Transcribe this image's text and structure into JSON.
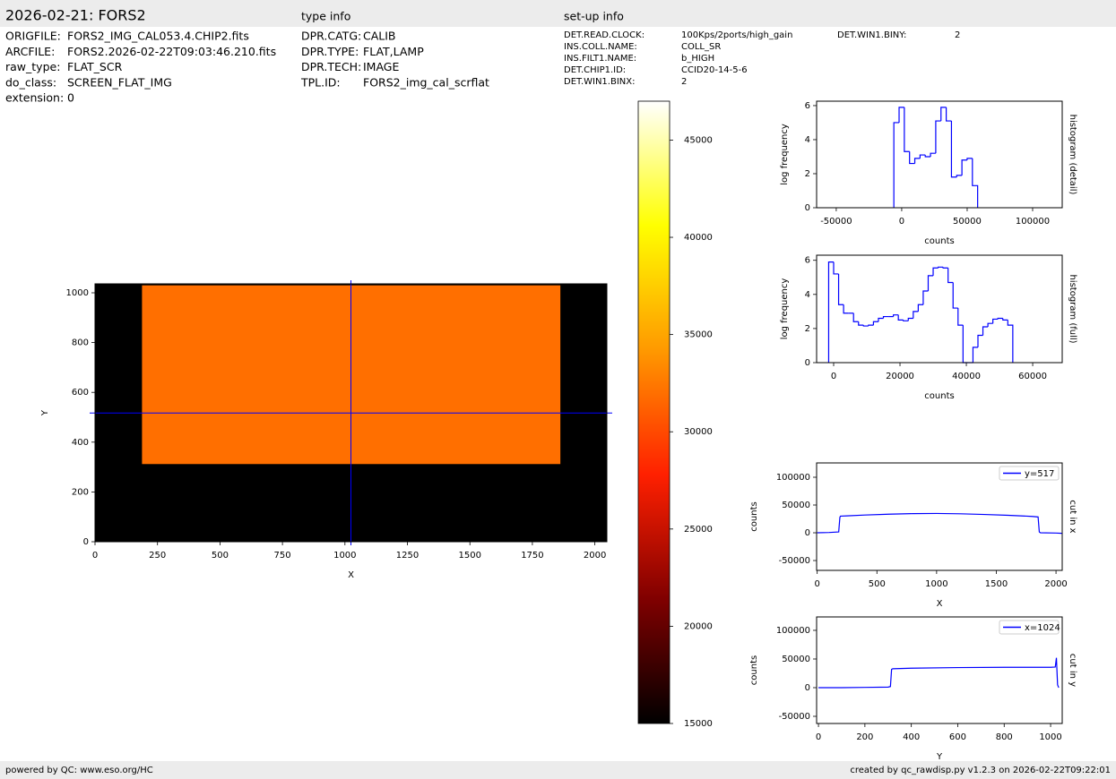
{
  "header": {
    "title": "2026-02-21: FORS2",
    "type_info_title": "type info",
    "setup_info_title": "set-up info",
    "file_info": [
      [
        "ORIGFILE:",
        "FORS2_IMG_CAL053.4.CHIP2.fits"
      ],
      [
        "ARCFILE:",
        "FORS2.2026-02-22T09:03:46.210.fits"
      ],
      [
        "raw_type:",
        "FLAT_SCR"
      ],
      [
        "do_class:",
        "SCREEN_FLAT_IMG"
      ],
      [
        "extension:",
        "0"
      ]
    ],
    "type_info": [
      [
        "DPR.CATG:",
        "CALIB"
      ],
      [
        "DPR.TYPE:",
        "FLAT,LAMP"
      ],
      [
        "DPR.TECH:",
        "IMAGE"
      ],
      [
        "TPL.ID:",
        "FORS2_img_cal_scrflat"
      ]
    ],
    "setup_info": [
      [
        "DET.READ.CLOCK:",
        "100Kps/2ports/high_gain"
      ],
      [
        "INS.COLL.NAME:",
        "COLL_SR"
      ],
      [
        "INS.FILT1.NAME:",
        "b_HIGH"
      ],
      [
        "DET.CHIP1.ID:",
        "CCID20-14-5-6"
      ],
      [
        "DET.WIN1.BINX:",
        "2"
      ],
      [
        "DET.WIN1.BINY:",
        "2"
      ]
    ]
  },
  "chart_data": [
    {
      "type": "image",
      "xlabel": "X",
      "ylabel": "Y",
      "xlim": [
        0,
        2048
      ],
      "ylim": [
        0,
        1036
      ],
      "xticks": [
        0,
        250,
        500,
        750,
        1000,
        1250,
        1500,
        1750,
        2000
      ],
      "yticks": [
        0,
        200,
        400,
        600,
        800,
        1000
      ],
      "regions": [
        {
          "x": [
            0,
            2048
          ],
          "y": [
            0,
            1036
          ],
          "value": 15000
        },
        {
          "x": [
            188,
            1862
          ],
          "y": [
            312,
            1030
          ],
          "value": 32000
        }
      ],
      "cursor": {
        "x": 1024,
        "y": 517
      },
      "cursor_color": "#0000ff"
    },
    {
      "type": "colorbar",
      "ylim": [
        15000,
        47000
      ],
      "yticks": [
        15000,
        20000,
        25000,
        30000,
        35000,
        40000,
        45000
      ],
      "colormap": [
        "#000000",
        "#800000",
        "#ff2000",
        "#ff9900",
        "#ffff00",
        "#ffffff"
      ]
    },
    {
      "type": "histogram",
      "xlabel": "counts",
      "ylabel": "log frequency",
      "side_label": "histogram (detail)",
      "color": "#0000ff",
      "xlim": [
        -65000,
        122600
      ],
      "ylim": [
        0,
        6.26
      ],
      "xticks": [
        -50000,
        0,
        50000,
        100000
      ],
      "yticks": [
        0,
        2,
        4,
        6
      ],
      "bins": [
        -6000,
        -2000,
        2000,
        6000,
        10000,
        14000,
        18000,
        22000,
        26000,
        30000,
        34000,
        38000,
        42000,
        46000,
        50000,
        54000,
        58000
      ],
      "values": [
        5.0,
        5.9,
        3.3,
        2.6,
        2.9,
        3.1,
        3.0,
        3.2,
        5.1,
        5.9,
        5.1,
        1.8,
        1.9,
        2.8,
        2.9,
        1.3
      ]
    },
    {
      "type": "histogram",
      "xlabel": "counts",
      "ylabel": "log frequency",
      "side_label": "histogram (full)",
      "color": "#0000ff",
      "xlim": [
        -5135,
        68900
      ],
      "ylim": [
        0,
        6.3
      ],
      "xticks": [
        0,
        20000,
        40000,
        60000
      ],
      "yticks": [
        0,
        2,
        4,
        6
      ],
      "bins": [
        -1500,
        0,
        1500,
        3000,
        4500,
        6000,
        7500,
        9000,
        10500,
        12000,
        13500,
        15000,
        16500,
        18000,
        19500,
        21000,
        22500,
        24000,
        25500,
        27000,
        28500,
        30000,
        31500,
        33000,
        34500,
        36000,
        37500,
        39000,
        40500,
        42000,
        43500,
        45000,
        46500,
        48000,
        49500,
        51000,
        52500,
        54000
      ],
      "values": [
        5.9,
        5.2,
        3.4,
        2.9,
        2.9,
        2.4,
        2.2,
        2.15,
        2.2,
        2.4,
        2.6,
        2.7,
        2.7,
        2.8,
        2.5,
        2.45,
        2.6,
        3.0,
        3.4,
        4.2,
        5.1,
        5.55,
        5.6,
        5.55,
        4.7,
        3.2,
        2.2,
        0,
        0,
        0.9,
        1.6,
        2.1,
        2.3,
        2.55,
        2.6,
        2.5,
        2.2
      ]
    },
    {
      "type": "line",
      "xlabel": "X",
      "ylabel": "counts",
      "side_label": "cut in x",
      "legend": "upper right",
      "xlim": [
        -5,
        2052
      ],
      "ylim": [
        -67700,
        125800
      ],
      "xticks": [
        0,
        500,
        1000,
        1500,
        2000
      ],
      "yticks": [
        -50000,
        0,
        50000,
        100000
      ],
      "x": [
        0,
        100,
        180,
        190,
        195,
        250,
        400,
        600,
        800,
        1000,
        1200,
        1400,
        1600,
        1800,
        1850,
        1860,
        1870,
        2000,
        2048
      ],
      "series": [
        {
          "name": "y=517",
          "color": "#0000ff",
          "values": [
            0,
            500,
            1500,
            28000,
            30000,
            30500,
            32000,
            33500,
            34500,
            34800,
            34200,
            33000,
            31500,
            29500,
            28500,
            1500,
            0,
            -500,
            -1000
          ]
        }
      ]
    },
    {
      "type": "line",
      "xlabel": "Y",
      "ylabel": "counts",
      "side_label": "cut in y",
      "legend": "upper right",
      "xlim": [
        -8,
        1050
      ],
      "ylim": [
        -62500,
        123400
      ],
      "xticks": [
        0,
        200,
        400,
        600,
        800,
        1000
      ],
      "yticks": [
        -50000,
        0,
        50000,
        100000
      ],
      "x": [
        0,
        100,
        200,
        300,
        310,
        315,
        320,
        400,
        600,
        800,
        1000,
        1020,
        1025,
        1030,
        1035
      ],
      "series": [
        {
          "name": "x=1024",
          "color": "#0000ff",
          "values": [
            0,
            0,
            500,
            1000,
            2000,
            32000,
            33000,
            34000,
            35000,
            35500,
            35500,
            36000,
            52000,
            5000,
            0
          ]
        }
      ]
    }
  ],
  "footer": {
    "left": "powered by QC: www.eso.org/HC",
    "right": "created by qc_rawdisp.py v1.2.3 on 2026-02-22T09:22:01"
  }
}
